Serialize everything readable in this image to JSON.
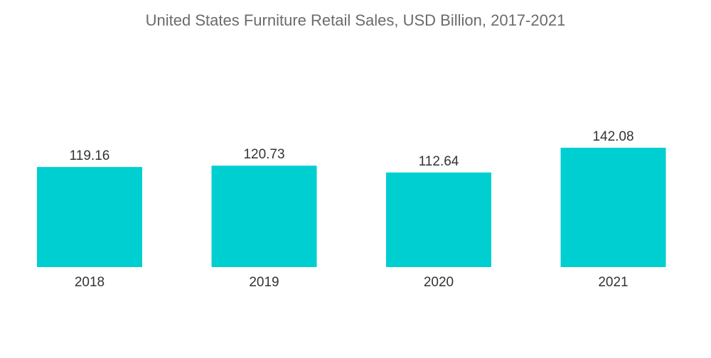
{
  "chart_data": {
    "type": "bar",
    "title": "United States Furniture Retail Sales, USD Billion, 2017-2021",
    "categories": [
      "2018",
      "2019",
      "2020",
      "2021"
    ],
    "values": [
      119.16,
      120.73,
      112.64,
      142.08
    ],
    "value_labels": [
      "119.16",
      "120.73",
      "112.64",
      "142.08"
    ],
    "xlabel": "",
    "ylabel": "",
    "ylim": [
      0,
      142.08
    ],
    "grid": false,
    "legend": "none",
    "bar_color": "#00cfd1"
  }
}
